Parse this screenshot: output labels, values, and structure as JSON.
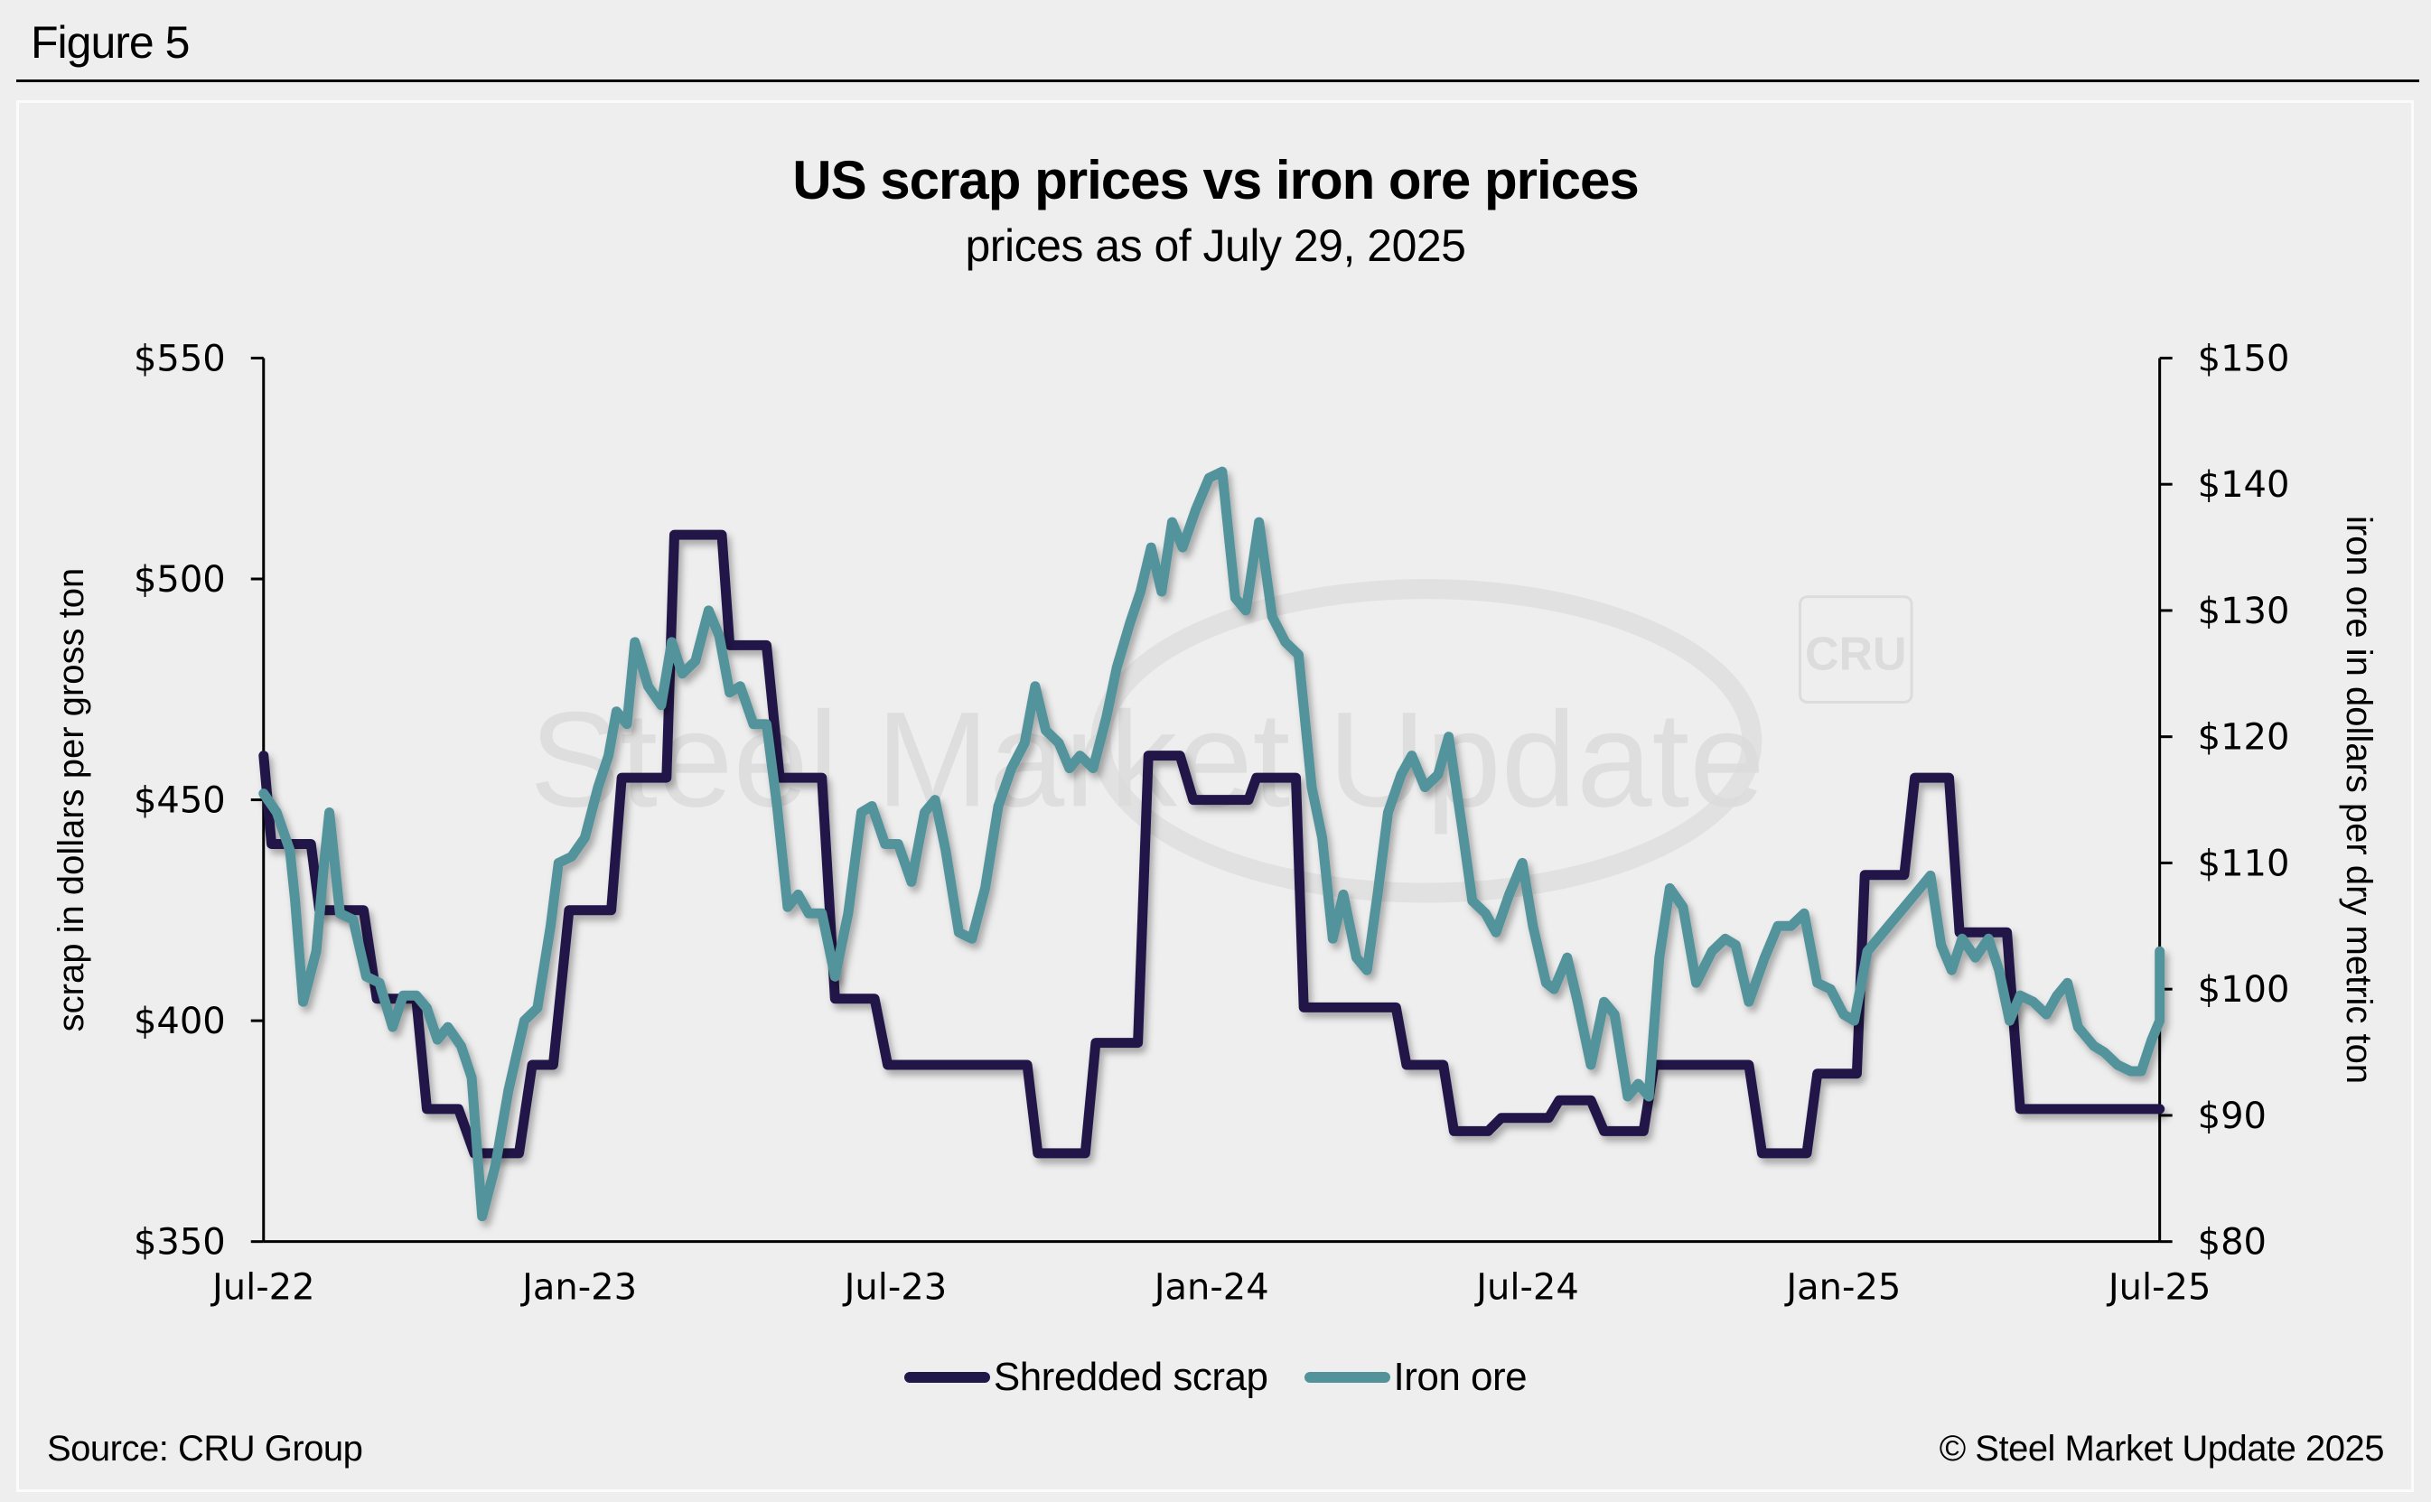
{
  "figure_label": "Figure 5",
  "source": "Source: CRU Group",
  "copyright": "© Steel Market Update 2025",
  "watermark": {
    "text": "Steel Market Update",
    "badge": "CRU"
  },
  "colors": {
    "scrap": "#20184a",
    "iron_ore": "#52939b",
    "background": "#eeeeee",
    "watermark": "#dcdcdc"
  },
  "chart_data": {
    "type": "line",
    "title": "US scrap prices vs iron ore prices",
    "subtitle": "prices as of July 29, 2025",
    "xlabel": "",
    "ylabel": "scrap in dollars per gross ton",
    "y2label": "iron ore in dollars per dry metric ton",
    "x_unit": "months since Jul-22",
    "x_range": [
      0,
      36
    ],
    "x_ticks": [
      {
        "at": 0,
        "label": "Jul-22"
      },
      {
        "at": 6,
        "label": "Jan-23"
      },
      {
        "at": 12,
        "label": "Jul-23"
      },
      {
        "at": 18,
        "label": "Jan-24"
      },
      {
        "at": 24,
        "label": "Jul-24"
      },
      {
        "at": 30,
        "label": "Jan-25"
      },
      {
        "at": 36,
        "label": "Jul-25"
      }
    ],
    "ylim": [
      350,
      550
    ],
    "y_ticks": [
      "$350",
      "$400",
      "$450",
      "$500",
      "$550"
    ],
    "y_tick_values": [
      350,
      400,
      450,
      500,
      550
    ],
    "y2lim": [
      80,
      150
    ],
    "y2_ticks": [
      "$80",
      "$90",
      "$100",
      "$110",
      "$120",
      "$130",
      "$140",
      "$150"
    ],
    "y2_tick_values": [
      80,
      90,
      100,
      110,
      120,
      130,
      140,
      150
    ],
    "grid": false,
    "legend": "bottom-center",
    "series": [
      {
        "name": "Shredded scrap",
        "axis": "left",
        "points": [
          [
            0,
            460
          ],
          [
            0.15,
            440
          ],
          [
            0.9,
            440
          ],
          [
            1.06,
            425
          ],
          [
            1.9,
            425
          ],
          [
            2.15,
            405
          ],
          [
            2.9,
            405
          ],
          [
            3.1,
            380
          ],
          [
            3.7,
            380
          ],
          [
            4.0,
            370
          ],
          [
            4.85,
            370
          ],
          [
            5.1,
            390
          ],
          [
            5.5,
            390
          ],
          [
            5.8,
            425
          ],
          [
            6.6,
            425
          ],
          [
            6.8,
            455
          ],
          [
            7.65,
            455
          ],
          [
            7.8,
            510
          ],
          [
            8.7,
            510
          ],
          [
            8.85,
            485
          ],
          [
            9.55,
            485
          ],
          [
            9.8,
            455
          ],
          [
            10.6,
            455
          ],
          [
            10.85,
            405
          ],
          [
            11.6,
            405
          ],
          [
            11.85,
            390
          ],
          [
            14.5,
            390
          ],
          [
            14.7,
            370
          ],
          [
            15.6,
            370
          ],
          [
            15.8,
            395
          ],
          [
            16.6,
            395
          ],
          [
            16.8,
            460
          ],
          [
            17.4,
            460
          ],
          [
            17.65,
            450
          ],
          [
            18.7,
            450
          ],
          [
            18.85,
            455
          ],
          [
            19.6,
            455
          ],
          [
            19.75,
            403
          ],
          [
            21.5,
            403
          ],
          [
            21.7,
            390
          ],
          [
            22.4,
            390
          ],
          [
            22.6,
            375
          ],
          [
            23.25,
            375
          ],
          [
            23.5,
            378
          ],
          [
            24.4,
            378
          ],
          [
            24.6,
            382
          ],
          [
            25.2,
            382
          ],
          [
            25.45,
            375
          ],
          [
            26.2,
            375
          ],
          [
            26.4,
            390
          ],
          [
            28.2,
            390
          ],
          [
            28.45,
            370
          ],
          [
            29.3,
            370
          ],
          [
            29.5,
            388
          ],
          [
            30.25,
            388
          ],
          [
            30.4,
            433
          ],
          [
            31.15,
            433
          ],
          [
            31.35,
            455
          ],
          [
            32.0,
            455
          ],
          [
            32.2,
            420
          ],
          [
            33.1,
            420
          ],
          [
            33.35,
            380
          ],
          [
            36,
            380
          ]
        ]
      },
      {
        "name": "Iron ore",
        "axis": "right",
        "points": [
          [
            0,
            115.5
          ],
          [
            0.25,
            114
          ],
          [
            0.5,
            111
          ],
          [
            0.6,
            107
          ],
          [
            0.75,
            99
          ],
          [
            1.0,
            103
          ],
          [
            1.15,
            110
          ],
          [
            1.25,
            114
          ],
          [
            1.45,
            106
          ],
          [
            1.7,
            105.5
          ],
          [
            1.95,
            101
          ],
          [
            2.2,
            100.5
          ],
          [
            2.45,
            97
          ],
          [
            2.65,
            99.5
          ],
          [
            2.9,
            99.5
          ],
          [
            3.1,
            98.5
          ],
          [
            3.3,
            96
          ],
          [
            3.5,
            97
          ],
          [
            3.75,
            95.5
          ],
          [
            3.95,
            93
          ],
          [
            4.15,
            82
          ],
          [
            4.4,
            86
          ],
          [
            4.65,
            92
          ],
          [
            4.95,
            97.5
          ],
          [
            5.2,
            98.5
          ],
          [
            5.45,
            105
          ],
          [
            5.6,
            110
          ],
          [
            5.85,
            110.5
          ],
          [
            6.1,
            112
          ],
          [
            6.35,
            116
          ],
          [
            6.55,
            118.5
          ],
          [
            6.7,
            122
          ],
          [
            6.9,
            121
          ],
          [
            7.05,
            127.5
          ],
          [
            7.3,
            124
          ],
          [
            7.55,
            122.5
          ],
          [
            7.75,
            127.5
          ],
          [
            7.95,
            125
          ],
          [
            8.2,
            126
          ],
          [
            8.45,
            130
          ],
          [
            8.65,
            128
          ],
          [
            8.85,
            123.5
          ],
          [
            9.05,
            124
          ],
          [
            9.3,
            121
          ],
          [
            9.55,
            121
          ],
          [
            9.75,
            114.5
          ],
          [
            9.95,
            106.5
          ],
          [
            10.15,
            107.5
          ],
          [
            10.35,
            106
          ],
          [
            10.6,
            106
          ],
          [
            10.85,
            101
          ],
          [
            11.1,
            106
          ],
          [
            11.35,
            114
          ],
          [
            11.55,
            114.5
          ],
          [
            11.8,
            111.5
          ],
          [
            12.05,
            111.5
          ],
          [
            12.3,
            108.5
          ],
          [
            12.55,
            114
          ],
          [
            12.75,
            115
          ],
          [
            12.95,
            111
          ],
          [
            13.2,
            104.5
          ],
          [
            13.45,
            104
          ],
          [
            13.7,
            108
          ],
          [
            13.95,
            114.5
          ],
          [
            14.2,
            117.5
          ],
          [
            14.45,
            119.5
          ],
          [
            14.65,
            124
          ],
          [
            14.85,
            120.5
          ],
          [
            15.1,
            119.5
          ],
          [
            15.3,
            117.5
          ],
          [
            15.5,
            118.5
          ],
          [
            15.75,
            117.5
          ],
          [
            16.0,
            121.5
          ],
          [
            16.2,
            125.5
          ],
          [
            16.45,
            129
          ],
          [
            16.65,
            131.5
          ],
          [
            16.85,
            135
          ],
          [
            17.05,
            131.5
          ],
          [
            17.25,
            137
          ],
          [
            17.45,
            135
          ],
          [
            17.7,
            138
          ],
          [
            17.95,
            140.5
          ],
          [
            18.2,
            141
          ],
          [
            18.45,
            131
          ],
          [
            18.65,
            130
          ],
          [
            18.9,
            137
          ],
          [
            19.15,
            129.5
          ],
          [
            19.4,
            127.5
          ],
          [
            19.65,
            126.5
          ],
          [
            19.9,
            116
          ],
          [
            20.1,
            112
          ],
          [
            20.3,
            104
          ],
          [
            20.5,
            107.5
          ],
          [
            20.75,
            102.5
          ],
          [
            20.95,
            101.5
          ],
          [
            21.15,
            107.5
          ],
          [
            21.35,
            114
          ],
          [
            21.6,
            117
          ],
          [
            21.8,
            118.5
          ],
          [
            22.05,
            116
          ],
          [
            22.3,
            117
          ],
          [
            22.5,
            120
          ],
          [
            22.75,
            113
          ],
          [
            22.95,
            107
          ],
          [
            23.2,
            106
          ],
          [
            23.4,
            104.5
          ],
          [
            23.65,
            107.5
          ],
          [
            23.9,
            110
          ],
          [
            24.1,
            105
          ],
          [
            24.35,
            100.5
          ],
          [
            24.5,
            100
          ],
          [
            24.75,
            102.5
          ],
          [
            24.95,
            99
          ],
          [
            25.2,
            94
          ],
          [
            25.45,
            99
          ],
          [
            25.65,
            98
          ],
          [
            25.9,
            91.5
          ],
          [
            26.1,
            92.5
          ],
          [
            26.3,
            91.5
          ],
          [
            26.5,
            102.5
          ],
          [
            26.7,
            108
          ],
          [
            26.95,
            106.5
          ],
          [
            27.2,
            100.5
          ],
          [
            27.5,
            103
          ],
          [
            27.75,
            104
          ],
          [
            27.95,
            103.5
          ],
          [
            28.2,
            99
          ],
          [
            28.5,
            102.5
          ],
          [
            28.75,
            105
          ],
          [
            29.0,
            105
          ],
          [
            29.25,
            106
          ],
          [
            29.5,
            100.5
          ],
          [
            29.75,
            100
          ],
          [
            30.0,
            98
          ],
          [
            30.2,
            97.5
          ],
          [
            30.45,
            103
          ],
          [
            30.75,
            104.5
          ],
          [
            31.05,
            106
          ],
          [
            31.35,
            107.5
          ],
          [
            31.65,
            109
          ],
          [
            31.85,
            103.5
          ],
          [
            32.05,
            101.5
          ],
          [
            32.25,
            104
          ],
          [
            32.5,
            102.5
          ],
          [
            32.75,
            104
          ],
          [
            32.95,
            101.5
          ],
          [
            33.15,
            97.5
          ],
          [
            33.35,
            99.5
          ],
          [
            33.6,
            99
          ],
          [
            33.85,
            98
          ],
          [
            34.05,
            99.5
          ],
          [
            34.25,
            100.5
          ],
          [
            34.45,
            97
          ],
          [
            34.75,
            95.5
          ],
          [
            34.95,
            95
          ],
          [
            35.2,
            94
          ],
          [
            35.45,
            93.5
          ],
          [
            35.65,
            93.5
          ],
          [
            35.85,
            96
          ],
          [
            36.1,
            97.5
          ],
          [
            36.25,
            102.5
          ],
          [
            36.5,
            103
          ]
        ]
      }
    ]
  }
}
